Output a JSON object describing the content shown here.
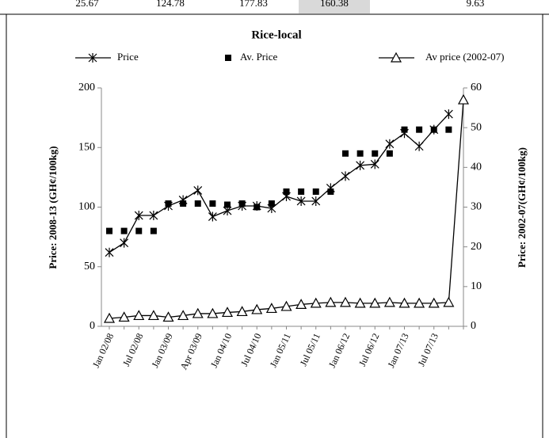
{
  "header_row": {
    "cells": [
      "25.67",
      "124.78",
      "177.83",
      "160.38",
      "9.63"
    ]
  },
  "chart_data": {
    "type": "line",
    "title": "Rice-local",
    "ylabel": "Price: 2008-13 (GH¢/100kg)",
    "y2label": "Price: 2002-07(GH¢/100kg)",
    "categories": [
      "Jan 02/08",
      null,
      "Jul 02/08",
      null,
      "Jan 03/09",
      null,
      "Apr 03/09",
      null,
      "Jan 04/10",
      null,
      "Jul 04/10",
      null,
      "Jan 05/11",
      null,
      "Jul 05/11",
      null,
      "Jan 06/12",
      null,
      "Jul 06/12",
      null,
      "Jan 07/13",
      null,
      "Jul 07/13",
      null,
      null
    ],
    "ylim": [
      0,
      200
    ],
    "yticks": [
      0,
      50,
      100,
      150,
      200
    ],
    "y2lim": [
      0,
      60
    ],
    "y2ticks": [
      0,
      10,
      20,
      30,
      40,
      50,
      60
    ],
    "series": [
      {
        "name": "Price",
        "color": "#000000",
        "marker": "x",
        "values": [
          62,
          70,
          93,
          93,
          101,
          106,
          114,
          92,
          97,
          101,
          101,
          99,
          109,
          105,
          105,
          116,
          126,
          135,
          136,
          153,
          162,
          151,
          165,
          178,
          null
        ]
      },
      {
        "name": "Av. Price",
        "color": "#000000",
        "marker": "square",
        "values": [
          80,
          80,
          80,
          80,
          103,
          103,
          103,
          103,
          102,
          103,
          100,
          103,
          113,
          113,
          113,
          113,
          145,
          145,
          145,
          145,
          165,
          165,
          165,
          165,
          null
        ]
      },
      {
        "name": "Av price (2002-07)",
        "color": "#000000",
        "marker": "triangle",
        "axis": "y2",
        "values": [
          2,
          2.3,
          2.7,
          2.7,
          2.3,
          2.7,
          3.2,
          3.2,
          3.5,
          3.7,
          4.2,
          4.5,
          5,
          5.5,
          5.8,
          6,
          6,
          5.8,
          5.8,
          6,
          5.8,
          5.8,
          5.8,
          6,
          57
        ]
      }
    ]
  }
}
